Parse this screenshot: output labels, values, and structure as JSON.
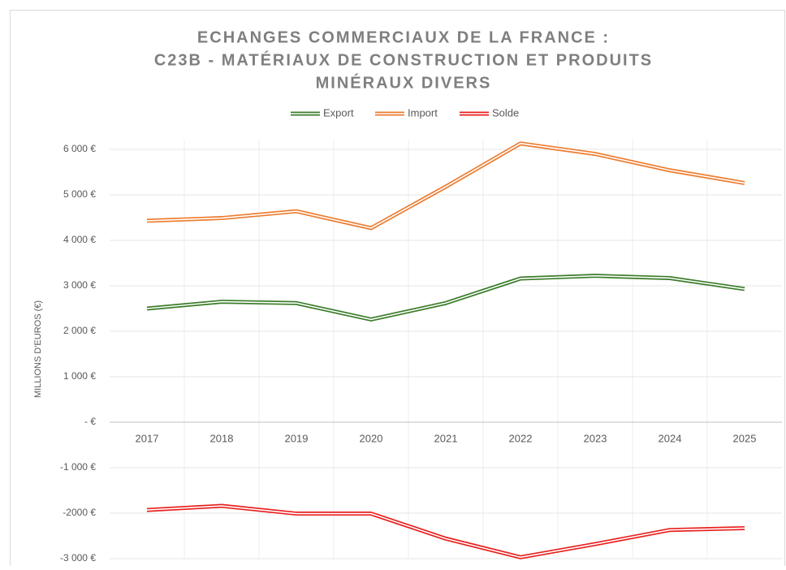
{
  "chart_data": {
    "type": "line",
    "title": [
      "ECHANGES COMMERCIAUX DE LA FRANCE :",
      "C23B - MATÉRIAUX DE CONSTRUCTION ET PRODUITS",
      "MINÉRAUX DIVERS"
    ],
    "y_label": "MILLIONS D'EUROS (€)",
    "categories": [
      "2017",
      "2018",
      "2019",
      "2020",
      "2021",
      "2022",
      "2023",
      "2024",
      "2025"
    ],
    "series": [
      {
        "name": "Export",
        "color": "#3b7d2a",
        "values": [
          2500,
          2650,
          2620,
          2260,
          2620,
          3160,
          3220,
          3170,
          2930
        ]
      },
      {
        "name": "Import",
        "color": "#ed7d31",
        "values": [
          4430,
          4490,
          4640,
          4270,
          5180,
          6130,
          5900,
          5540,
          5260
        ]
      },
      {
        "name": "Solde",
        "color": "#e8201e",
        "values": [
          -1930,
          -1840,
          -2010,
          -2010,
          -2560,
          -2970,
          -2680,
          -2370,
          -2330
        ]
      }
    ],
    "ylim": [
      -3000,
      6000
    ],
    "yticks": [
      {
        "value": 6000,
        "label": "6 000 €"
      },
      {
        "value": 5000,
        "label": "5 000 €"
      },
      {
        "value": 4000,
        "label": "4 000 €"
      },
      {
        "value": 3000,
        "label": "3 000 €"
      },
      {
        "value": 2000,
        "label": "2 000 €"
      },
      {
        "value": 1000,
        "label": "1 000 €"
      },
      {
        "value": 0,
        "label": "-  €"
      },
      {
        "value": -1000,
        "label": "-1 000 €"
      },
      {
        "value": -2000,
        "label": "-2000 €"
      },
      {
        "value": -3000,
        "label": "-3 000 €"
      }
    ],
    "grid": true,
    "legend": "top"
  }
}
